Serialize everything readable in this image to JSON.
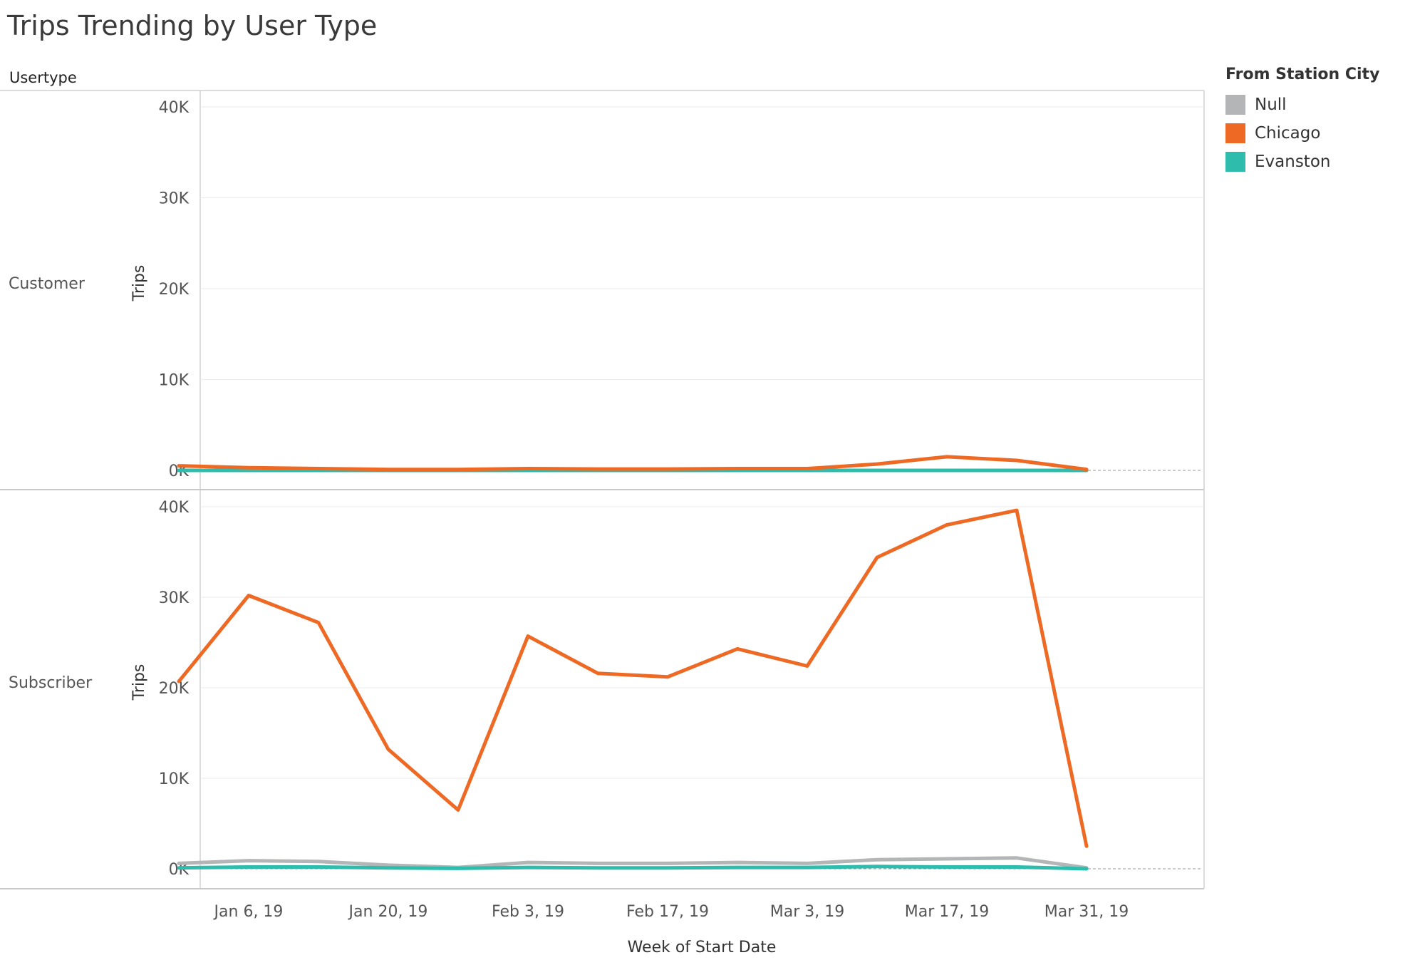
{
  "title": "Trips Trending by User Type",
  "row_header": "Usertype",
  "legend": {
    "title": "From Station City",
    "items": [
      {
        "label": "Null",
        "color": "#b3b5b6"
      },
      {
        "label": "Chicago",
        "color": "#ee6a24"
      },
      {
        "label": "Evanston",
        "color": "#2ebcad"
      }
    ]
  },
  "chart_data": {
    "type": "line",
    "xlabel": "Week of Start Date",
    "ylabel": "Trips",
    "ylim": [
      0,
      40000
    ],
    "yticks": [
      "0K",
      "10K",
      "20K",
      "30K",
      "40K"
    ],
    "x_tick_labels": [
      "Jan 6, 19",
      "Jan 20, 19",
      "Feb 3, 19",
      "Feb 17, 19",
      "Mar 3, 19",
      "Mar 17, 19",
      "Mar 31, 19"
    ],
    "x": [
      "2018-12-30",
      "2019-01-06",
      "2019-01-13",
      "2019-01-20",
      "2019-01-27",
      "2019-02-03",
      "2019-02-10",
      "2019-02-17",
      "2019-02-24",
      "2019-03-03",
      "2019-03-10",
      "2019-03-17",
      "2019-03-24",
      "2019-03-31"
    ],
    "panels": [
      {
        "usertype": "Customer",
        "series": [
          {
            "name": "Null",
            "values": [
              0,
              0,
              0,
              0,
              0,
              0,
              0,
              0,
              0,
              0,
              0,
              0,
              0,
              0
            ]
          },
          {
            "name": "Evanston",
            "values": [
              0,
              0,
              0,
              0,
              0,
              0,
              0,
              0,
              0,
              0,
              0,
              0,
              0,
              0
            ]
          },
          {
            "name": "Chicago",
            "values": [
              500,
              300,
              200,
              100,
              100,
              200,
              150,
              150,
              200,
              200,
              700,
              1500,
              1100,
              100
            ]
          }
        ]
      },
      {
        "usertype": "Subscriber",
        "series": [
          {
            "name": "Null",
            "values": [
              600,
              900,
              800,
              400,
              150,
              700,
              600,
              600,
              700,
              600,
              1000,
              1100,
              1200,
              100
            ]
          },
          {
            "name": "Evanston",
            "values": [
              100,
              200,
              200,
              100,
              50,
              150,
              100,
              100,
              150,
              150,
              250,
              200,
              200,
              0
            ]
          },
          {
            "name": "Chicago",
            "values": [
              20700,
              30200,
              27200,
              13200,
              6500,
              25700,
              21600,
              21200,
              24300,
              22400,
              34400,
              38000,
              39600,
              2500
            ]
          }
        ]
      }
    ]
  }
}
